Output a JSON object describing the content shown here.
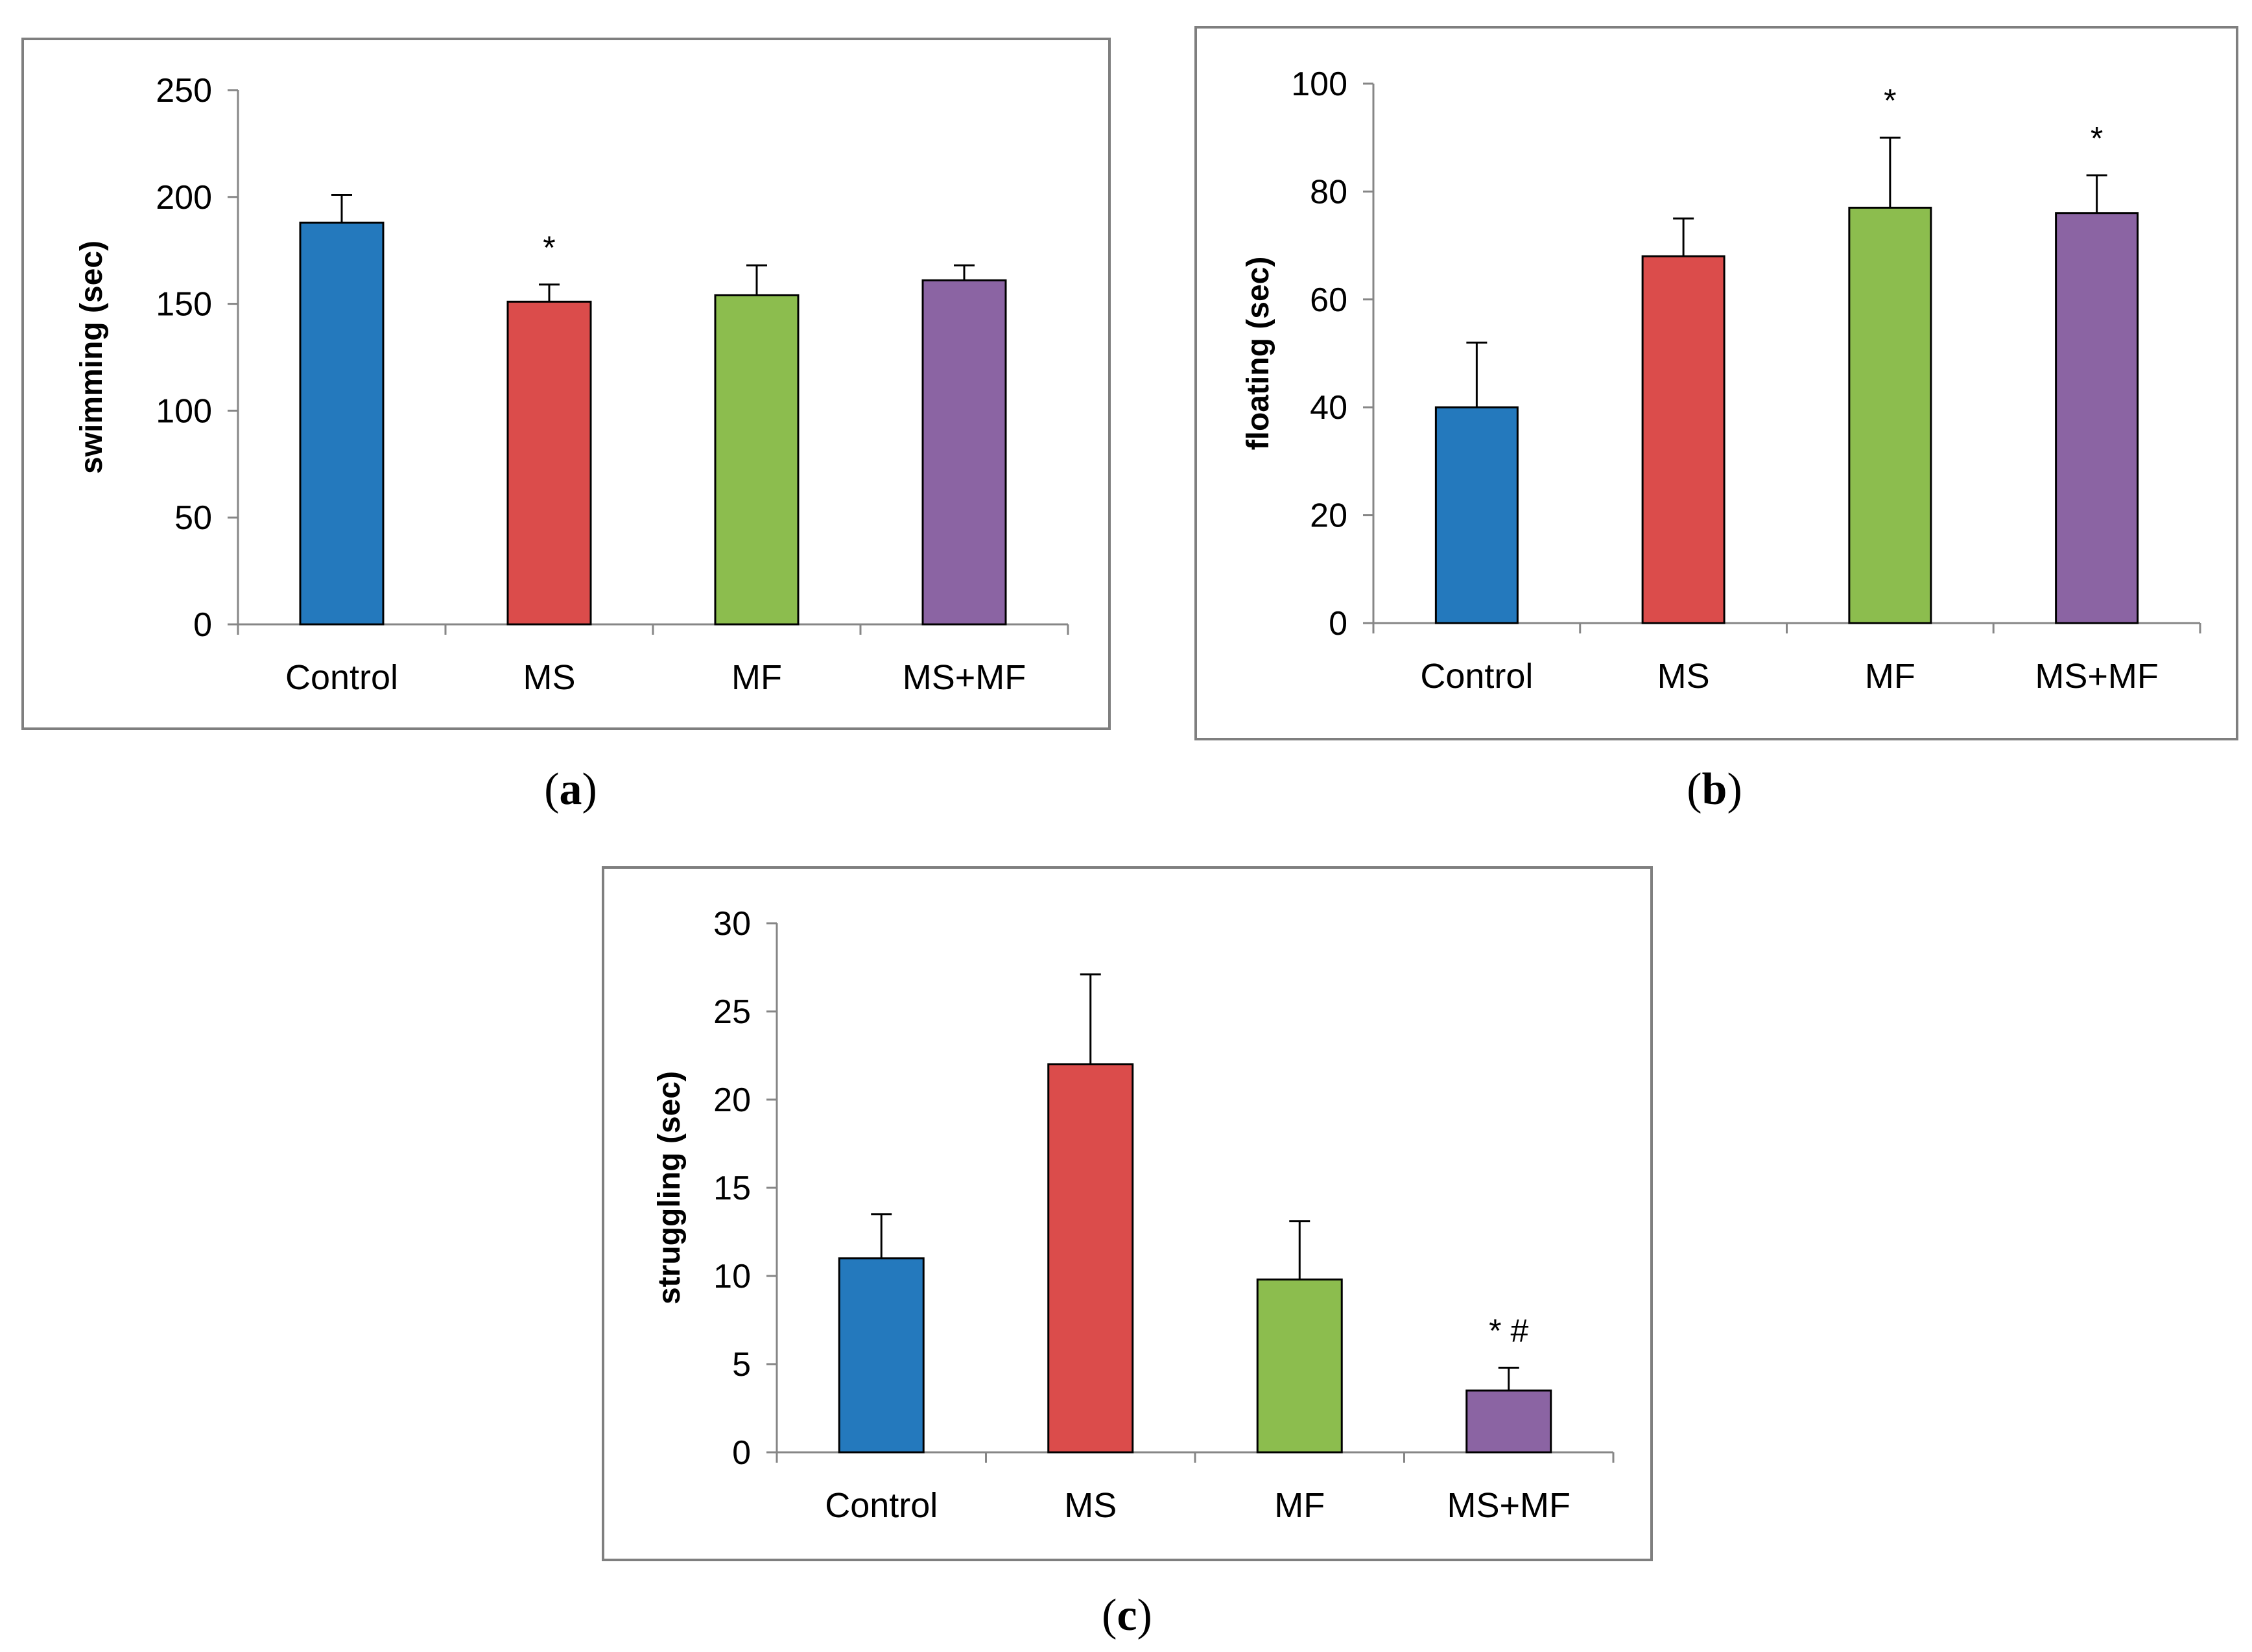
{
  "chart_data": [
    {
      "id": "a",
      "type": "bar",
      "panel_label": "a",
      "categories": [
        "Control",
        "MS",
        "MF",
        "MS+MF"
      ],
      "values": [
        188,
        151,
        154,
        161
      ],
      "errors": [
        13,
        8,
        14,
        7
      ],
      "significance": [
        "",
        "*",
        "",
        ""
      ],
      "colors": [
        "#2479bd",
        "#db4c4b",
        "#8cbd4e",
        "#8b64a3"
      ],
      "ylabel": "swimming (sec)",
      "ylim": [
        0,
        250
      ],
      "yticks": [
        0,
        50,
        100,
        150,
        200,
        250
      ],
      "grid": false
    },
    {
      "id": "b",
      "type": "bar",
      "panel_label": "b",
      "categories": [
        "Control",
        "MS",
        "MF",
        "MS+MF"
      ],
      "values": [
        40,
        68,
        77,
        76
      ],
      "errors": [
        12,
        7,
        13,
        7
      ],
      "significance": [
        "",
        "",
        "*",
        "*"
      ],
      "colors": [
        "#2479bd",
        "#db4c4b",
        "#8cbd4e",
        "#8b64a3"
      ],
      "ylabel": "floating (sec)",
      "ylim": [
        0,
        100
      ],
      "yticks": [
        0,
        20,
        40,
        60,
        80,
        100
      ],
      "grid": false
    },
    {
      "id": "c",
      "type": "bar",
      "panel_label": "c",
      "categories": [
        "Control",
        "MS",
        "MF",
        "MS+MF"
      ],
      "values": [
        11,
        22,
        9.8,
        3.5
      ],
      "errors": [
        2.5,
        5.1,
        3.3,
        1.3
      ],
      "significance": [
        "",
        "",
        "",
        "* #"
      ],
      "colors": [
        "#2479bd",
        "#db4c4b",
        "#8cbd4e",
        "#8b64a3"
      ],
      "ylabel": "struggling (sec)",
      "ylim": [
        0,
        30
      ],
      "yticks": [
        0,
        5,
        10,
        15,
        20,
        25,
        30
      ],
      "grid": false
    }
  ]
}
